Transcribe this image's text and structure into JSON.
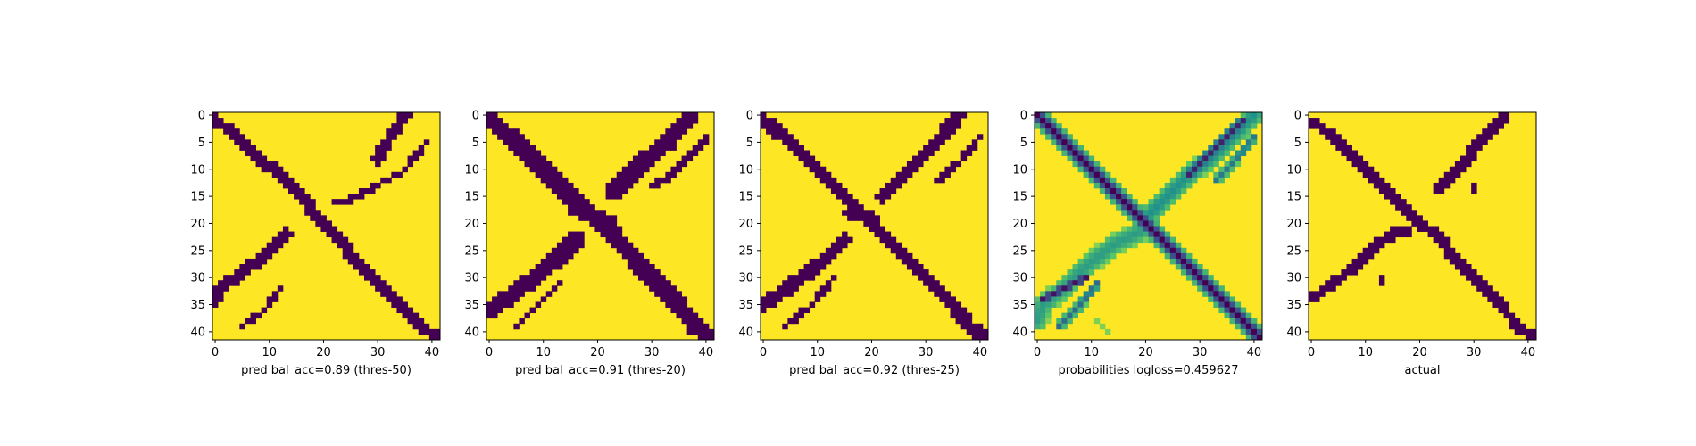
{
  "chart_data": [
    {
      "type": "heatmap",
      "xlabel": "pred bal_acc=0.89 (thres-50)",
      "x_ticks": [
        "0",
        "10",
        "20",
        "30",
        "40"
      ],
      "y_ticks": [
        "0",
        "5",
        "10",
        "15",
        "20",
        "25",
        "30",
        "35",
        "40"
      ],
      "grid": false,
      "colormap": "binary",
      "bands": [
        {
          "name": "main-diagonal",
          "points": [
            [
              0,
              1
            ],
            [
              3,
              3
            ],
            [
              8,
              8
            ],
            [
              12,
              11
            ],
            [
              16,
              15
            ],
            [
              19,
              19
            ],
            [
              23,
              23
            ],
            [
              26,
              27
            ],
            [
              30,
              31
            ],
            [
              34,
              35
            ],
            [
              38,
              39
            ],
            [
              41,
              41
            ]
          ],
          "width": 2.2,
          "value": 0
        },
        {
          "name": "anti-diagonal-lower",
          "points": [
            [
              13,
              22
            ],
            [
              9,
              26
            ],
            [
              5,
              29
            ],
            [
              1,
              32
            ],
            [
              0,
              34
            ]
          ],
          "width": 2.2,
          "value": 0
        },
        {
          "name": "anti-diagonal-upper",
          "points": [
            [
              35,
              0
            ],
            [
              33,
              3
            ],
            [
              31,
              6
            ],
            [
              30,
              8
            ]
          ],
          "width": 2.2,
          "value": 0
        },
        {
          "name": "upper-arm",
          "points": [
            [
              39,
              5
            ],
            [
              35,
              10
            ],
            [
              30,
              13
            ],
            [
              24,
              16
            ],
            [
              22,
              16
            ]
          ],
          "width": 1.0,
          "value": 0
        },
        {
          "name": "lower-arm",
          "points": [
            [
              12,
              32
            ],
            [
              9,
              36
            ],
            [
              5,
              39
            ]
          ],
          "width": 1.0,
          "value": 0
        }
      ]
    },
    {
      "type": "heatmap",
      "xlabel": "pred bal_acc=0.91 (thres-20)",
      "x_ticks": [
        "0",
        "10",
        "20",
        "30",
        "40"
      ],
      "y_ticks": [
        "0",
        "5",
        "10",
        "15",
        "20",
        "25",
        "30",
        "35",
        "40"
      ],
      "grid": false,
      "colormap": "binary",
      "bands": [
        {
          "name": "main-diagonal",
          "points": [
            [
              0,
              1
            ],
            [
              4,
              4
            ],
            [
              9,
              9
            ],
            [
              14,
              14
            ],
            [
              18,
              18
            ],
            [
              23,
              22
            ],
            [
              27,
              27
            ],
            [
              31,
              31
            ],
            [
              35,
              35
            ],
            [
              38,
              39
            ],
            [
              41,
              41
            ]
          ],
          "width": 3.0,
          "value": 0
        },
        {
          "name": "anti-diagonal-lower",
          "points": [
            [
              16,
              23
            ],
            [
              12,
              27
            ],
            [
              7,
              31
            ],
            [
              3,
              34
            ],
            [
              0,
              36
            ]
          ],
          "width": 3.0,
          "value": 0
        },
        {
          "name": "anti-diagonal-upper",
          "points": [
            [
              37,
              0
            ],
            [
              33,
              5
            ],
            [
              29,
              8
            ],
            [
              26,
              11
            ],
            [
              23,
              14
            ]
          ],
          "width": 3.0,
          "value": 0
        },
        {
          "name": "center-blob",
          "points": [
            [
              16,
              17
            ],
            [
              22,
              20
            ]
          ],
          "width": 3.4,
          "value": 0
        },
        {
          "name": "upper-arm",
          "points": [
            [
              40,
              4
            ],
            [
              36,
              9
            ],
            [
              32,
              12
            ],
            [
              30,
              13
            ]
          ],
          "width": 1.3,
          "value": 0
        },
        {
          "name": "lower-arm",
          "points": [
            [
              13,
              31
            ],
            [
              9,
              35
            ],
            [
              5,
              39
            ]
          ],
          "width": 1.3,
          "value": 0
        }
      ]
    },
    {
      "type": "heatmap",
      "xlabel": "pred bal_acc=0.92 (thres-25)",
      "x_ticks": [
        "0",
        "10",
        "20",
        "30",
        "40"
      ],
      "y_ticks": [
        "0",
        "5",
        "10",
        "15",
        "20",
        "25",
        "30",
        "35",
        "40"
      ],
      "grid": false,
      "colormap": "binary",
      "bands": [
        {
          "name": "main-diagonal",
          "points": [
            [
              0,
              1
            ],
            [
              4,
              4
            ],
            [
              9,
              9
            ],
            [
              14,
              14
            ],
            [
              18,
              18
            ],
            [
              22,
              22
            ],
            [
              27,
              27
            ],
            [
              31,
              31
            ],
            [
              35,
              35
            ],
            [
              38,
              39
            ],
            [
              41,
              41
            ]
          ],
          "width": 2.6,
          "value": 0
        },
        {
          "name": "anti-diagonal-lower",
          "points": [
            [
              15,
              23
            ],
            [
              11,
              27
            ],
            [
              7,
              30
            ],
            [
              3,
              33
            ],
            [
              0,
              35
            ]
          ],
          "width": 2.6,
          "value": 0
        },
        {
          "name": "anti-diagonal-upper",
          "points": [
            [
              36,
              0
            ],
            [
              33,
              4
            ],
            [
              29,
              8
            ],
            [
              25,
              12
            ],
            [
              22,
              15
            ]
          ],
          "width": 2.6,
          "value": 0
        },
        {
          "name": "center-blob",
          "points": [
            [
              16,
              18
            ],
            [
              20,
              19
            ]
          ],
          "width": 2.8,
          "value": 0
        },
        {
          "name": "upper-arm",
          "points": [
            [
              40,
              4
            ],
            [
              36,
              9
            ],
            [
              32,
              12
            ]
          ],
          "width": 1.2,
          "value": 0
        },
        {
          "name": "lower-arm",
          "points": [
            [
              13,
              30
            ],
            [
              9,
              35
            ],
            [
              4,
              39
            ]
          ],
          "width": 1.2,
          "value": 0
        }
      ]
    },
    {
      "type": "heatmap",
      "xlabel": "probabilities logloss=0.459627",
      "x_ticks": [
        "0",
        "10",
        "20",
        "30",
        "40"
      ],
      "y_ticks": [
        "0",
        "5",
        "10",
        "15",
        "20",
        "25",
        "30",
        "35",
        "40"
      ],
      "grid": false,
      "colormap": "viridis",
      "bands": [
        {
          "name": "main-diagonal",
          "points": [
            [
              0,
              0
            ],
            [
              10,
              10
            ],
            [
              20,
              20
            ],
            [
              30,
              30
            ],
            [
              41,
              41
            ]
          ],
          "width": 2.2,
          "value": 0.0
        },
        {
          "name": "main-diagonal-halo",
          "points": [
            [
              0,
              0
            ],
            [
              10,
              10
            ],
            [
              20,
              20
            ],
            [
              30,
              30
            ],
            [
              41,
              41
            ]
          ],
          "width": 3.6,
          "value": 0.45
        },
        {
          "name": "anti-diagonal-upper-wide",
          "points": [
            [
              40,
              0
            ],
            [
              36,
              4
            ],
            [
              32,
              8
            ],
            [
              28,
              11
            ],
            [
              24,
              15
            ],
            [
              20,
              19
            ]
          ],
          "width": 3.6,
          "value": 0.5
        },
        {
          "name": "anti-diagonal-upper-core",
          "points": [
            [
              38,
              1
            ],
            [
              34,
              5
            ],
            [
              31,
              8
            ],
            [
              28,
              11
            ]
          ],
          "width": 1.8,
          "value": 0.1
        },
        {
          "name": "anti-diagonal-lower-wide",
          "points": [
            [
              20,
              21
            ],
            [
              14,
              24
            ],
            [
              9,
              28
            ],
            [
              5,
              32
            ],
            [
              1,
              35
            ],
            [
              0,
              38
            ]
          ],
          "width": 3.8,
          "value": 0.55
        },
        {
          "name": "anti-diagonal-lower-core",
          "points": [
            [
              9,
              30
            ],
            [
              5,
              32
            ],
            [
              1,
              34
            ]
          ],
          "width": 1.6,
          "value": 0.05
        },
        {
          "name": "lower-arm",
          "points": [
            [
              11,
              31
            ],
            [
              8,
              35
            ],
            [
              4,
              39
            ]
          ],
          "width": 1.6,
          "value": 0.35
        },
        {
          "name": "upper-arm",
          "points": [
            [
              40,
              4
            ],
            [
              36,
              9
            ],
            [
              33,
              12
            ]
          ],
          "width": 1.6,
          "value": 0.4
        },
        {
          "name": "specks-lower",
          "points": [
            [
              11,
              38
            ],
            [
              13,
              40
            ]
          ],
          "width": 1.2,
          "value": 0.8
        }
      ]
    },
    {
      "type": "heatmap",
      "xlabel": "actual",
      "x_ticks": [
        "0",
        "10",
        "20",
        "30",
        "40"
      ],
      "y_ticks": [
        "0",
        "5",
        "10",
        "15",
        "20",
        "25",
        "30",
        "35",
        "40"
      ],
      "grid": false,
      "colormap": "binary",
      "bands": [
        {
          "name": "main-diagonal",
          "points": [
            [
              0,
              1
            ],
            [
              4,
              4
            ],
            [
              9,
              9
            ],
            [
              14,
              14
            ],
            [
              18,
              18
            ],
            [
              20,
              20
            ],
            [
              23,
              22
            ],
            [
              27,
              27
            ],
            [
              31,
              31
            ],
            [
              35,
              35
            ],
            [
              38,
              39
            ],
            [
              41,
              41
            ]
          ],
          "width": 1.9,
          "value": 0
        },
        {
          "name": "anti-diagonal-lower",
          "points": [
            [
              18,
              21
            ],
            [
              15,
              22
            ],
            [
              12,
              24
            ],
            [
              8,
              28
            ],
            [
              4,
              31
            ],
            [
              0,
              34
            ]
          ],
          "width": 1.9,
          "value": 0
        },
        {
          "name": "anti-diagonal-upper",
          "points": [
            [
              36,
              0
            ],
            [
              33,
              3
            ],
            [
              30,
              6
            ],
            [
              29,
              8
            ],
            [
              26,
              11
            ],
            [
              23,
              14
            ]
          ],
          "width": 1.9,
          "value": 0
        },
        {
          "name": "small-dot-right",
          "points": [
            [
              30,
              13
            ],
            [
              30,
              14
            ]
          ],
          "width": 0.8,
          "value": 0
        },
        {
          "name": "small-dot-left",
          "points": [
            [
              13,
              30
            ],
            [
              13,
              31
            ]
          ],
          "width": 0.8,
          "value": 0
        }
      ]
    }
  ]
}
